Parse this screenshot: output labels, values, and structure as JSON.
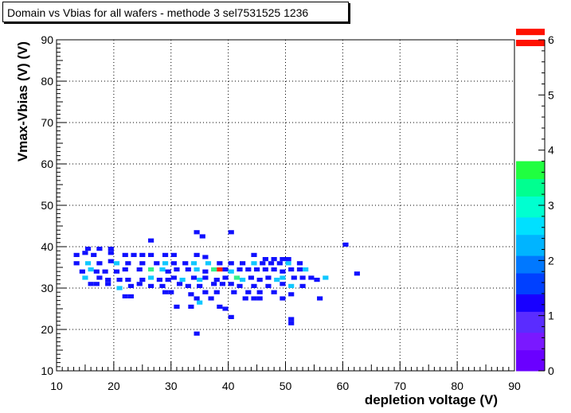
{
  "chart_data": {
    "type": "heatmap",
    "title": "Domain vs Vbias for all wafers - methode 3  sel7531525  1236",
    "xlabel": "depletion voltage (V)",
    "ylabel": "Vmax-Vbias (V) (V)",
    "xlim": [
      10,
      90
    ],
    "ylim": [
      10,
      90
    ],
    "x_ticks": [
      "10",
      "20",
      "30",
      "40",
      "50",
      "60",
      "70",
      "80",
      "90"
    ],
    "y_ticks": [
      "10",
      "20",
      "30",
      "40",
      "50",
      "60",
      "70",
      "80",
      "90"
    ],
    "grid": true,
    "palette": {
      "range": [
        0,
        6
      ],
      "ticks": [
        "0",
        "1",
        "2",
        "3",
        "4",
        "5",
        "6"
      ]
    },
    "cells": [
      [
        34.5,
        19,
        1
      ],
      [
        40.5,
        23,
        1
      ],
      [
        51,
        21.5,
        1
      ],
      [
        51,
        22.5,
        1
      ],
      [
        31,
        25.5,
        1
      ],
      [
        33.5,
        25.5,
        1
      ],
      [
        35,
        26.5,
        2
      ],
      [
        38.5,
        25.5,
        1
      ],
      [
        39.5,
        25,
        1
      ],
      [
        34.5,
        27.5,
        1
      ],
      [
        37,
        27.5,
        1
      ],
      [
        43,
        27.5,
        1
      ],
      [
        44.5,
        27.5,
        1
      ],
      [
        45.5,
        27.5,
        1
      ],
      [
        49.5,
        27.5,
        1
      ],
      [
        51,
        28.5,
        1
      ],
      [
        56,
        27.5,
        1
      ],
      [
        22,
        28,
        1
      ],
      [
        23,
        28,
        1
      ],
      [
        29,
        29,
        1
      ],
      [
        30,
        29,
        1
      ],
      [
        33.5,
        28.5,
        1
      ],
      [
        36,
        29,
        1
      ],
      [
        38,
        29,
        1
      ],
      [
        41,
        29,
        1
      ],
      [
        43.5,
        29,
        1
      ],
      [
        45.5,
        29,
        1
      ],
      [
        48,
        29,
        1
      ],
      [
        16,
        31,
        1
      ],
      [
        17,
        31,
        1
      ],
      [
        19,
        31,
        1
      ],
      [
        21,
        30,
        2
      ],
      [
        23,
        30.5,
        1
      ],
      [
        24.5,
        31,
        1
      ],
      [
        26.5,
        30.5,
        1
      ],
      [
        28.5,
        30.5,
        1
      ],
      [
        31.5,
        31,
        1
      ],
      [
        33,
        30.5,
        1
      ],
      [
        35,
        30.5,
        1
      ],
      [
        37.5,
        31,
        1
      ],
      [
        39,
        31,
        1
      ],
      [
        40.5,
        31,
        1
      ],
      [
        42,
        30.5,
        1
      ],
      [
        44.5,
        30.5,
        1
      ],
      [
        47,
        30.5,
        1
      ],
      [
        49.5,
        31,
        1
      ],
      [
        51,
        30.5,
        2
      ],
      [
        53,
        30.5,
        1
      ],
      [
        15,
        32.5,
        2
      ],
      [
        17.5,
        32.5,
        1
      ],
      [
        19,
        32,
        1
      ],
      [
        21,
        32,
        1
      ],
      [
        22.5,
        32,
        1
      ],
      [
        25,
        32,
        1
      ],
      [
        26.5,
        32.5,
        2
      ],
      [
        28,
        32,
        1
      ],
      [
        29.5,
        32,
        1
      ],
      [
        30.5,
        32.5,
        1
      ],
      [
        32,
        32,
        2
      ],
      [
        34,
        32.5,
        1
      ],
      [
        35,
        32,
        2
      ],
      [
        36,
        32.5,
        1
      ],
      [
        38,
        32,
        1
      ],
      [
        39.5,
        32.5,
        1
      ],
      [
        41.5,
        32.5,
        3
      ],
      [
        42.5,
        32,
        2
      ],
      [
        44,
        32.5,
        1
      ],
      [
        45.5,
        32,
        1
      ],
      [
        47,
        32.5,
        1
      ],
      [
        48.5,
        32,
        2
      ],
      [
        49.5,
        32.5,
        2
      ],
      [
        51.5,
        32.5,
        1
      ],
      [
        53,
        32.5,
        1
      ],
      [
        54.5,
        32.5,
        1
      ],
      [
        55.5,
        32,
        1
      ],
      [
        57,
        32.5,
        2
      ],
      [
        14.5,
        34,
        1
      ],
      [
        16,
        34.5,
        2
      ],
      [
        17,
        34,
        1
      ],
      [
        18.5,
        34,
        1
      ],
      [
        20.5,
        34,
        1
      ],
      [
        22,
        34.5,
        1
      ],
      [
        24.5,
        34.5,
        1
      ],
      [
        26.5,
        34.5,
        3
      ],
      [
        28.5,
        34.5,
        2
      ],
      [
        29.5,
        34,
        1
      ],
      [
        31,
        34.5,
        1
      ],
      [
        33,
        34.5,
        1
      ],
      [
        34.5,
        34.5,
        2
      ],
      [
        36,
        34,
        1
      ],
      [
        37.5,
        34.5,
        3
      ],
      [
        38.5,
        34.5,
        6
      ],
      [
        39.5,
        34.5,
        1
      ],
      [
        40.5,
        34,
        2
      ],
      [
        42,
        34.5,
        1
      ],
      [
        43.5,
        34.5,
        1
      ],
      [
        45,
        34.5,
        1
      ],
      [
        46.5,
        34.5,
        1
      ],
      [
        48,
        34.5,
        1
      ],
      [
        49.5,
        34,
        1
      ],
      [
        51,
        34.5,
        1
      ],
      [
        52.5,
        34.5,
        1
      ],
      [
        53.5,
        34.5,
        2
      ],
      [
        62.5,
        33.5,
        1
      ],
      [
        13.5,
        36,
        1
      ],
      [
        15.5,
        36,
        2
      ],
      [
        17.5,
        36,
        1
      ],
      [
        19.5,
        36.5,
        1
      ],
      [
        20.5,
        36,
        2
      ],
      [
        22.5,
        36,
        1
      ],
      [
        25,
        36,
        1
      ],
      [
        27.5,
        36,
        1
      ],
      [
        29,
        36,
        2
      ],
      [
        30.5,
        36,
        1
      ],
      [
        32.5,
        36,
        1
      ],
      [
        34,
        36,
        2
      ],
      [
        36.5,
        36,
        2
      ],
      [
        38.5,
        36,
        1
      ],
      [
        40.5,
        36,
        1
      ],
      [
        42.5,
        36,
        1
      ],
      [
        44.5,
        36,
        2
      ],
      [
        46,
        36,
        1
      ],
      [
        47.5,
        36,
        1
      ],
      [
        49,
        36,
        1
      ],
      [
        50.5,
        36,
        2
      ],
      [
        52.5,
        36,
        1
      ],
      [
        13.5,
        38,
        1
      ],
      [
        15,
        38.5,
        1
      ],
      [
        16.5,
        38,
        1
      ],
      [
        19.5,
        38.5,
        1
      ],
      [
        22,
        38,
        1
      ],
      [
        23.5,
        38,
        1
      ],
      [
        25,
        38,
        1
      ],
      [
        26.5,
        38,
        1
      ],
      [
        29,
        38,
        1
      ],
      [
        30.5,
        38,
        1
      ],
      [
        34.5,
        38,
        1
      ],
      [
        36,
        37.5,
        1
      ],
      [
        44.5,
        38,
        1
      ],
      [
        46.5,
        37,
        1
      ],
      [
        48,
        37,
        1
      ],
      [
        49.5,
        37,
        1
      ],
      [
        50.5,
        37,
        1
      ],
      [
        15.5,
        39.5,
        1
      ],
      [
        17.5,
        39.5,
        1
      ],
      [
        19.5,
        39.5,
        1
      ],
      [
        26.5,
        41.5,
        1
      ],
      [
        60.5,
        40.5,
        1
      ],
      [
        34.5,
        43.5,
        1
      ],
      [
        35.5,
        42.5,
        1
      ],
      [
        40.5,
        43.5,
        1
      ]
    ]
  }
}
